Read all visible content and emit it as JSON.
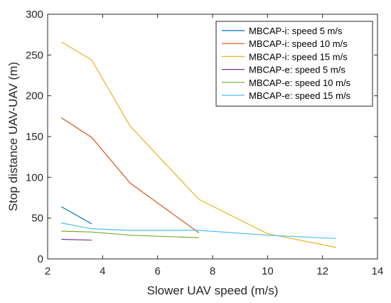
{
  "chart_data": {
    "type": "line",
    "xlabel": "Slower UAV speed (m/s)",
    "ylabel": "Stop distance UAV-UAV (m)",
    "xlim": [
      2,
      14
    ],
    "ylim": [
      0,
      300
    ],
    "xticks": [
      2,
      4,
      6,
      8,
      10,
      12,
      14
    ],
    "yticks": [
      0,
      50,
      100,
      150,
      200,
      250,
      300
    ],
    "grid": false,
    "legend_position": "top-right",
    "series": [
      {
        "name": "MBCAP-i: speed 5 m/s",
        "color": "#0072BD",
        "x": [
          2.5,
          3.6
        ],
        "y": [
          64,
          43
        ]
      },
      {
        "name": "MBCAP-i: speed 10 m/s",
        "color": "#D95319",
        "x": [
          2.5,
          3.6,
          5,
          7.5
        ],
        "y": [
          173,
          149,
          93,
          32
        ]
      },
      {
        "name": "MBCAP-i: speed 15 m/s",
        "color": "#EDB120",
        "x": [
          2.5,
          3.6,
          5,
          7.5,
          10,
          12.5
        ],
        "y": [
          266,
          244,
          163,
          73,
          31,
          14
        ]
      },
      {
        "name": "MBCAP-e: speed 5 m/s",
        "color": "#7E2F8E",
        "x": [
          2.5,
          3.6
        ],
        "y": [
          24,
          23
        ]
      },
      {
        "name": "MBCAP-e: speed 10 m/s",
        "color": "#77AC30",
        "x": [
          2.5,
          3.6,
          5,
          7.5
        ],
        "y": [
          34,
          33,
          29,
          26
        ]
      },
      {
        "name": "MBCAP-e: speed 15 m/s",
        "color": "#4DBEEE",
        "x": [
          2.5,
          3.6,
          5,
          7.5,
          10,
          12.5
        ],
        "y": [
          44,
          37,
          35,
          35,
          29,
          25
        ]
      }
    ]
  }
}
